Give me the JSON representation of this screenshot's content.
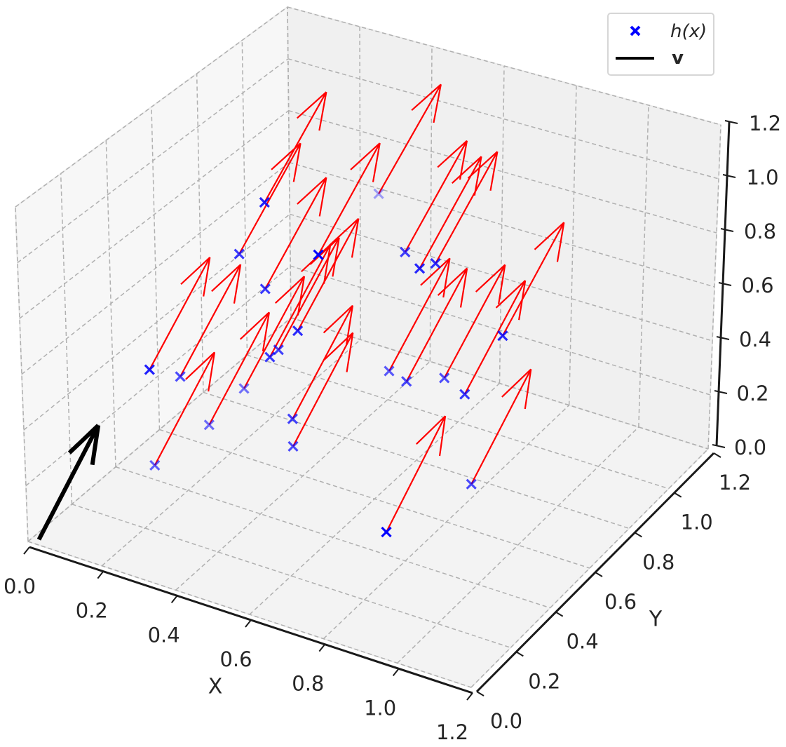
{
  "chart_data": {
    "type": "scatter3d-quiver",
    "title": "",
    "xlabel": "X",
    "ylabel": "Y",
    "zlabel": "",
    "xlim": [
      0,
      1.2
    ],
    "ylim": [
      0,
      1.2
    ],
    "zlim": [
      0,
      1.2
    ],
    "grid": true,
    "view": {
      "elev": 30,
      "azim": -60
    },
    "x_ticks": [
      "0.0",
      "0.2",
      "0.4",
      "0.6",
      "0.8",
      "1.0",
      "1.2"
    ],
    "y_ticks": [
      "0.0",
      "0.2",
      "0.4",
      "0.6",
      "0.8",
      "1.0",
      "1.2"
    ],
    "z_ticks": [
      "0.0",
      "0.2",
      "0.4",
      "0.6",
      "0.8",
      "1.0",
      "1.2"
    ],
    "legend_position": "top-right",
    "legend": [
      {
        "label": "h(x)",
        "marker": "x",
        "color": "#0000ff"
      },
      {
        "label": "v",
        "marker": "line",
        "color": "#000000"
      }
    ],
    "point_color": "#0000ff",
    "arrow_color": "#ff0000",
    "v_color": "#000000",
    "vector": [
      0.05,
      0.2,
      0.3
    ],
    "v_origin": [
      0.03,
      0.0,
      0.02
    ],
    "points": [
      [
        0.17,
        0.29,
        0.5
      ],
      [
        0.18,
        0.41,
        0.4
      ],
      [
        0.14,
        0.35,
        0.1
      ],
      [
        0.22,
        0.47,
        0.2
      ],
      [
        0.27,
        0.55,
        0.3
      ],
      [
        0.27,
        0.54,
        0.8
      ],
      [
        0.33,
        0.56,
        1.0
      ],
      [
        0.34,
        0.54,
        0.7
      ],
      [
        0.38,
        0.49,
        0.5
      ],
      [
        0.38,
        0.53,
        0.5
      ],
      [
        0.44,
        0.52,
        0.6
      ],
      [
        0.44,
        0.49,
        0.3
      ],
      [
        0.44,
        0.49,
        0.2
      ],
      [
        0.5,
        0.52,
        0.9
      ],
      [
        0.4,
        0.96,
        0.8
      ],
      [
        0.59,
        0.69,
        0.4
      ],
      [
        0.6,
        0.75,
        0.8
      ],
      [
        0.65,
        0.67,
        0.4
      ],
      [
        0.67,
        0.7,
        0.8
      ],
      [
        0.69,
        0.74,
        0.8
      ],
      [
        0.72,
        0.73,
        0.4
      ],
      [
        0.8,
        0.69,
        0.4
      ],
      [
        0.87,
        0.75,
        0.6
      ],
      [
        0.83,
        0.67,
        0.1
      ],
      [
        0.76,
        0.38,
        0.1
      ]
    ],
    "pane_colors": {
      "left": "#f7f7f7",
      "back": "#f0f0f0",
      "floor": "#f3f3f3"
    },
    "grid_color": "#b0b0b0"
  }
}
